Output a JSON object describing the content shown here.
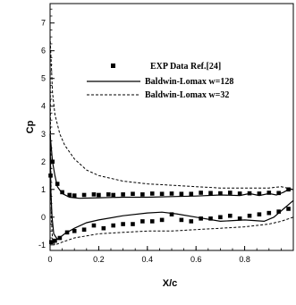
{
  "chart_data": {
    "type": "line",
    "xlabel": "X/c",
    "ylabel": "Cp",
    "xlim": [
      0,
      1
    ],
    "ylim": [
      -1.2,
      7.7
    ],
    "xticks": [
      0,
      0.2,
      0.4,
      0.6,
      0.8
    ],
    "xtick_labels": [
      "0",
      "0.2",
      "0.4",
      "0.6",
      "0.8"
    ],
    "yticks": [
      -1,
      0,
      1,
      2,
      3,
      4,
      5,
      6,
      7
    ],
    "ytick_labels": [
      "-1",
      "0",
      "1",
      "2",
      "3",
      "4",
      "5",
      "6",
      "7"
    ],
    "grid": false,
    "legend_position": "upper-right",
    "series": [
      {
        "name": "EXP Data Ref.[24]",
        "style": "markers",
        "points": [
          [
            0.002,
            1.5
          ],
          [
            0.01,
            2.0
          ],
          [
            0.03,
            1.2
          ],
          [
            0.05,
            0.9
          ],
          [
            0.08,
            0.8
          ],
          [
            0.1,
            0.78
          ],
          [
            0.14,
            0.8
          ],
          [
            0.18,
            0.82
          ],
          [
            0.2,
            0.8
          ],
          [
            0.24,
            0.82
          ],
          [
            0.26,
            0.8
          ],
          [
            0.3,
            0.82
          ],
          [
            0.34,
            0.84
          ],
          [
            0.38,
            0.82
          ],
          [
            0.42,
            0.85
          ],
          [
            0.46,
            0.84
          ],
          [
            0.5,
            0.85
          ],
          [
            0.54,
            0.84
          ],
          [
            0.58,
            0.84
          ],
          [
            0.62,
            0.88
          ],
          [
            0.66,
            0.87
          ],
          [
            0.7,
            0.86
          ],
          [
            0.74,
            0.88
          ],
          [
            0.78,
            0.85
          ],
          [
            0.82,
            0.86
          ],
          [
            0.86,
            0.85
          ],
          [
            0.9,
            0.88
          ],
          [
            0.94,
            0.87
          ],
          [
            0.98,
            1.0
          ],
          [
            0.005,
            -0.9
          ],
          [
            0.02,
            -0.85
          ],
          [
            0.04,
            -0.75
          ],
          [
            0.07,
            -0.55
          ],
          [
            0.1,
            -0.5
          ],
          [
            0.14,
            -0.45
          ],
          [
            0.18,
            -0.3
          ],
          [
            0.22,
            -0.4
          ],
          [
            0.26,
            -0.3
          ],
          [
            0.3,
            -0.25
          ],
          [
            0.34,
            -0.25
          ],
          [
            0.38,
            -0.15
          ],
          [
            0.42,
            -0.15
          ],
          [
            0.46,
            -0.1
          ],
          [
            0.5,
            0.1
          ],
          [
            0.54,
            -0.1
          ],
          [
            0.58,
            -0.15
          ],
          [
            0.62,
            -0.05
          ],
          [
            0.66,
            -0.05
          ],
          [
            0.7,
            0.0
          ],
          [
            0.74,
            0.05
          ],
          [
            0.78,
            -0.05
          ],
          [
            0.82,
            0.05
          ],
          [
            0.86,
            0.1
          ],
          [
            0.9,
            0.15
          ],
          [
            0.94,
            0.2
          ],
          [
            0.98,
            0.3
          ]
        ]
      },
      {
        "name": "Baldwin-Lomax w=128",
        "style": "solid",
        "upper": [
          [
            0,
            3.0
          ],
          [
            0.005,
            2.5
          ],
          [
            0.01,
            2.0
          ],
          [
            0.02,
            1.5
          ],
          [
            0.03,
            1.1
          ],
          [
            0.05,
            0.85
          ],
          [
            0.08,
            0.72
          ],
          [
            0.12,
            0.68
          ],
          [
            0.2,
            0.7
          ],
          [
            0.3,
            0.72
          ],
          [
            0.4,
            0.72
          ],
          [
            0.5,
            0.74
          ],
          [
            0.6,
            0.76
          ],
          [
            0.7,
            0.8
          ],
          [
            0.78,
            0.78
          ],
          [
            0.82,
            0.85
          ],
          [
            0.86,
            0.78
          ],
          [
            0.9,
            0.85
          ],
          [
            0.93,
            0.8
          ],
          [
            0.96,
            0.9
          ],
          [
            0.98,
            1.0
          ],
          [
            1.0,
            1.0
          ]
        ],
        "lower": [
          [
            0,
            3.0
          ],
          [
            0.003,
            1.0
          ],
          [
            0.008,
            0.0
          ],
          [
            0.015,
            -0.6
          ],
          [
            0.03,
            -0.8
          ],
          [
            0.06,
            -0.6
          ],
          [
            0.1,
            -0.4
          ],
          [
            0.15,
            -0.2
          ],
          [
            0.2,
            -0.1
          ],
          [
            0.3,
            0.05
          ],
          [
            0.4,
            0.15
          ],
          [
            0.46,
            0.18
          ],
          [
            0.52,
            0.12
          ],
          [
            0.6,
            0.0
          ],
          [
            0.7,
            -0.15
          ],
          [
            0.8,
            -0.1
          ],
          [
            0.88,
            -0.15
          ],
          [
            0.92,
            0.0
          ],
          [
            0.96,
            0.3
          ],
          [
            1.0,
            0.6
          ]
        ]
      },
      {
        "name": "Baldwin-Lomax w=32",
        "style": "dashed",
        "upper": [
          [
            0,
            6.5
          ],
          [
            0.005,
            5.5
          ],
          [
            0.01,
            4.5
          ],
          [
            0.02,
            3.7
          ],
          [
            0.04,
            3.0
          ],
          [
            0.06,
            2.6
          ],
          [
            0.1,
            2.1
          ],
          [
            0.15,
            1.7
          ],
          [
            0.2,
            1.5
          ],
          [
            0.3,
            1.3
          ],
          [
            0.4,
            1.2
          ],
          [
            0.5,
            1.15
          ],
          [
            0.6,
            1.1
          ],
          [
            0.7,
            1.05
          ],
          [
            0.8,
            1.05
          ],
          [
            0.9,
            1.05
          ],
          [
            0.95,
            1.1
          ],
          [
            1.0,
            1.0
          ]
        ],
        "lower": [
          [
            0,
            6.5
          ],
          [
            0.002,
            3.0
          ],
          [
            0.005,
            0.0
          ],
          [
            0.01,
            -0.8
          ],
          [
            0.02,
            -1.0
          ],
          [
            0.05,
            -0.9
          ],
          [
            0.1,
            -0.75
          ],
          [
            0.2,
            -0.6
          ],
          [
            0.3,
            -0.55
          ],
          [
            0.4,
            -0.5
          ],
          [
            0.5,
            -0.5
          ],
          [
            0.6,
            -0.45
          ],
          [
            0.7,
            -0.4
          ],
          [
            0.8,
            -0.35
          ],
          [
            0.9,
            -0.25
          ],
          [
            0.95,
            -0.15
          ],
          [
            1.0,
            0.0
          ]
        ]
      }
    ]
  }
}
